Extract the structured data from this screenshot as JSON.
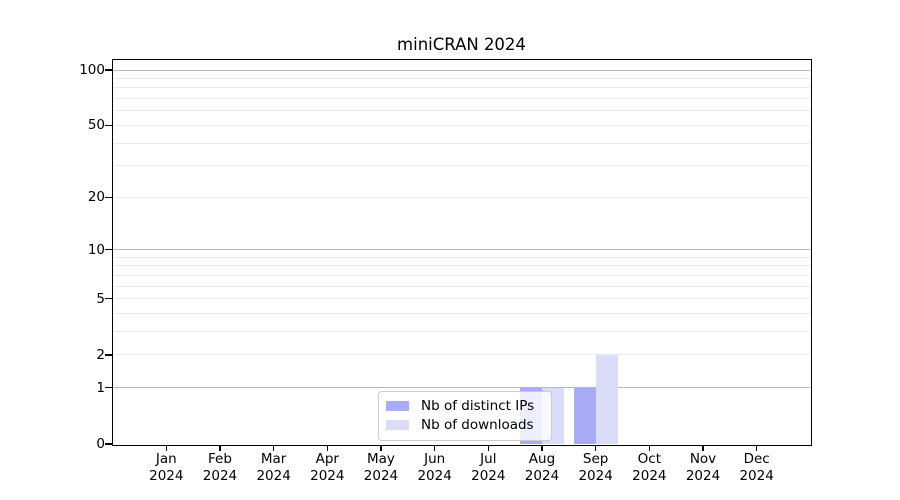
{
  "chart_data": {
    "type": "bar",
    "title": "miniCRAN 2024",
    "x_tick_year": "2024",
    "categories": [
      "Jan",
      "Feb",
      "Mar",
      "Apr",
      "May",
      "Jun",
      "Jul",
      "Aug",
      "Sep",
      "Oct",
      "Nov",
      "Dec"
    ],
    "series": [
      {
        "name": "Nb of distinct IPs",
        "color": "#a9abf7",
        "values": [
          0,
          0,
          0,
          0,
          0,
          0,
          0,
          1,
          1,
          0,
          0,
          0
        ]
      },
      {
        "name": "Nb of downloads",
        "color": "#dbdcf8",
        "values": [
          0,
          0,
          0,
          0,
          0,
          0,
          0,
          1,
          2,
          0,
          0,
          0
        ]
      }
    ],
    "yscale": "log1p",
    "ylim": [
      0,
      113
    ],
    "yticks": [
      0,
      1,
      2,
      5,
      10,
      20,
      50,
      100
    ],
    "grid": {
      "major_values": [
        1,
        10,
        100
      ],
      "minor_values": [
        2,
        3,
        4,
        5,
        6,
        7,
        8,
        9,
        20,
        30,
        40,
        50,
        60,
        70,
        80,
        90
      ],
      "major_color": "#b9b9b9",
      "minor_color": "#eaeaea"
    },
    "legend": {
      "position": "lower-center",
      "entries": [
        "Nb of distinct IPs",
        "Nb of downloads"
      ]
    }
  }
}
